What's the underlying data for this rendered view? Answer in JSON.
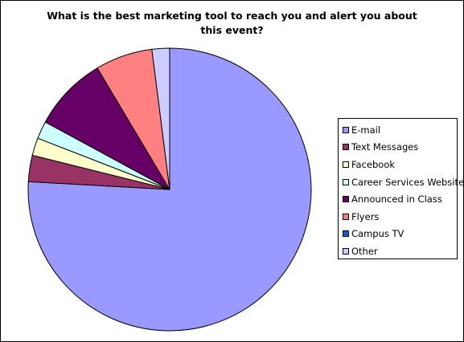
{
  "chart_data": {
    "type": "pie",
    "title": "What is the best marketing tool to reach you and alert you about\nthis event?",
    "legend_position": "right",
    "slices": [
      {
        "label": "E-mail",
        "value": 75.5,
        "color": "#9999ff"
      },
      {
        "label": "Text Messages",
        "value": 3.0,
        "color": "#993366"
      },
      {
        "label": "Facebook",
        "value": 2.0,
        "color": "#ffffcc"
      },
      {
        "label": "Career Services Website",
        "value": 2.0,
        "color": "#ccffff"
      },
      {
        "label": "Announced in Class",
        "value": 8.5,
        "color": "#660066"
      },
      {
        "label": "Flyers",
        "value": 6.5,
        "color": "#ff8080"
      },
      {
        "label": "Campus TV",
        "value": 0.0,
        "color": "#0066cc"
      },
      {
        "label": "Other",
        "value": 2.0,
        "color": "#ccccff"
      }
    ]
  }
}
